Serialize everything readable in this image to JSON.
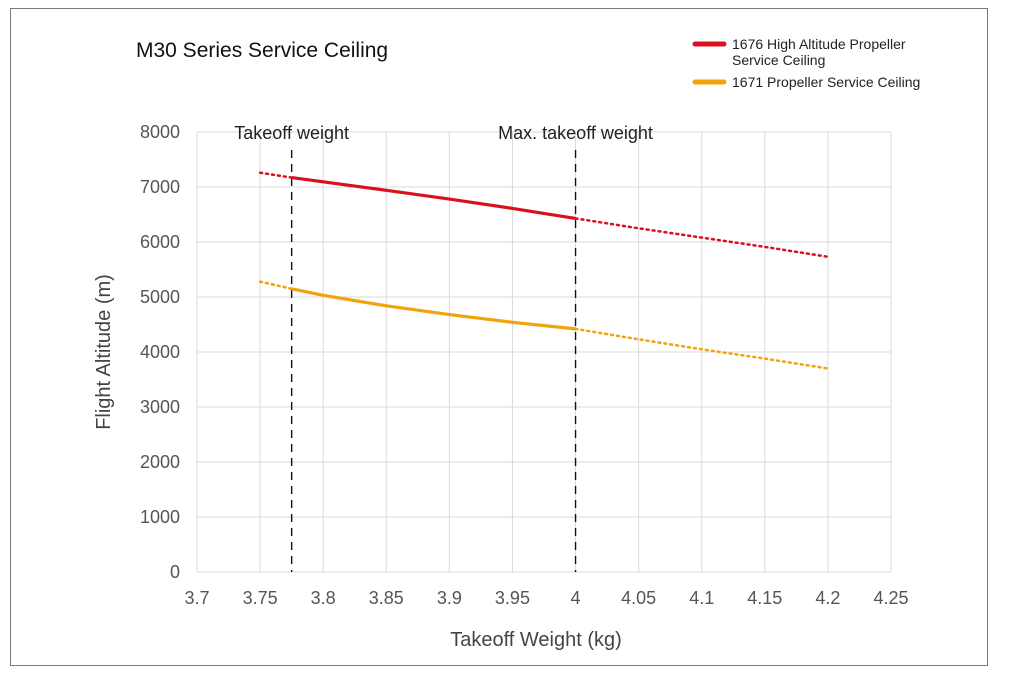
{
  "chart_data": {
    "type": "line",
    "title": "M30 Series Service Ceiling",
    "xlabel": "Takeoff Weight (kg)",
    "ylabel": "Flight Altitude (m)",
    "xlim": [
      3.7,
      4.25
    ],
    "ylim": [
      0,
      8000
    ],
    "x_ticks": [
      "3.7",
      "3.75",
      "3.8",
      "3.85",
      "3.9",
      "3.95",
      "4",
      "4.05",
      "4.1",
      "4.15",
      "4.2",
      "4.25"
    ],
    "y_ticks": [
      "0",
      "1000",
      "2000",
      "3000",
      "4000",
      "5000",
      "6000",
      "7000",
      "8000"
    ],
    "grid": true,
    "legend_position": "top-right",
    "reference_lines": [
      {
        "x": 3.775,
        "label": "Takeoff weight"
      },
      {
        "x": 4.0,
        "label": "Max. takeoff weight"
      }
    ],
    "series": [
      {
        "name": "1676 High Altitude Propeller Service Ceiling",
        "name_lines": [
          "1676 High Altitude Propeller",
          "Service Ceiling"
        ],
        "color": "#d9111e",
        "solid": {
          "x": [
            3.775,
            3.85,
            3.9,
            3.95,
            4.0
          ],
          "y": [
            7170,
            6940,
            6780,
            6610,
            6430
          ]
        },
        "dotted": [
          {
            "x": [
              3.75,
              3.775
            ],
            "y": [
              7260,
              7170
            ]
          },
          {
            "x": [
              4.0,
              4.05,
              4.1,
              4.15,
              4.2
            ],
            "y": [
              6430,
              6250,
              6080,
              5910,
              5730
            ]
          }
        ]
      },
      {
        "name": "1671 Propeller Service Ceiling",
        "name_lines": [
          "1671 Propeller Service Ceiling"
        ],
        "color": "#f0a30a",
        "solid": {
          "x": [
            3.775,
            3.8,
            3.85,
            3.9,
            3.95,
            4.0
          ],
          "y": [
            5150,
            5030,
            4840,
            4680,
            4540,
            4420
          ]
        },
        "dotted": [
          {
            "x": [
              3.75,
              3.775
            ],
            "y": [
              5280,
              5150
            ]
          },
          {
            "x": [
              4.0,
              4.05,
              4.1,
              4.15,
              4.2
            ],
            "y": [
              4420,
              4230,
              4050,
              3880,
              3700
            ]
          }
        ]
      }
    ]
  }
}
